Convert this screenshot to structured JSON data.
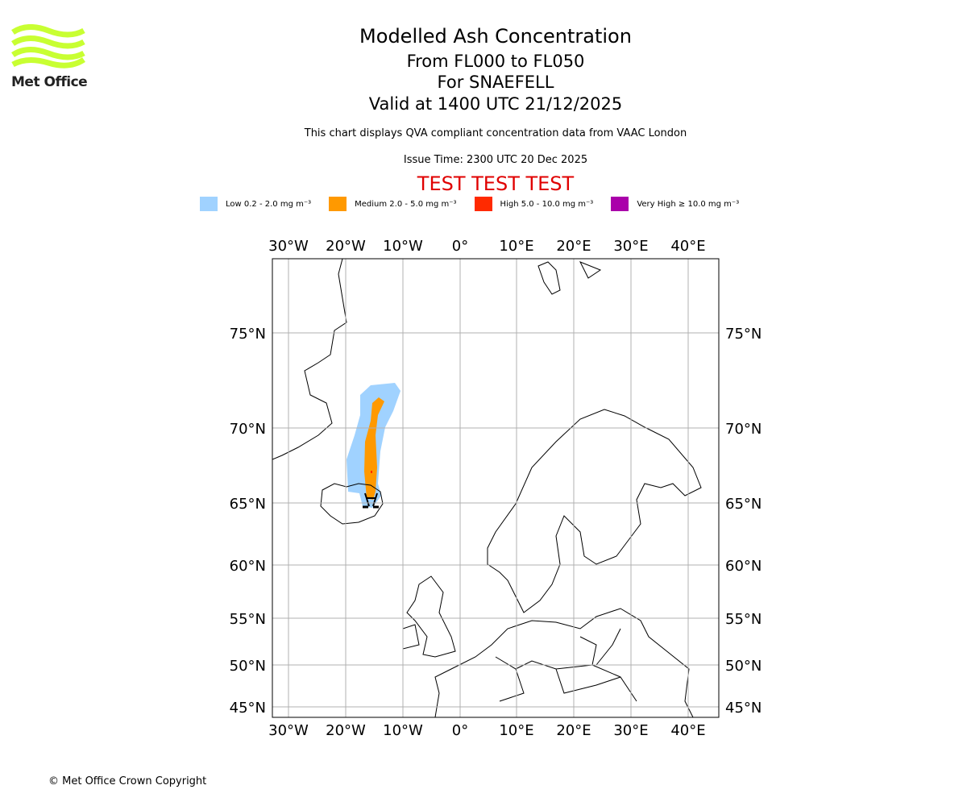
{
  "logo": {
    "text": "Met Office"
  },
  "header": {
    "title": "Modelled Ash Concentration",
    "flight_levels": "From FL000 to FL050",
    "volcano": "For SNAEFELL",
    "valid": "Valid at 1400 UTC 21/12/2025",
    "description": "This chart displays QVA compliant concentration data from VAAC London",
    "issue_time": "Issue Time: 2300 UTC 20 Dec 2025",
    "test_banner": "TEST TEST TEST"
  },
  "legend": [
    {
      "label": "Low 0.2 - 2.0 mg m⁻³",
      "color": "#a0d2ff"
    },
    {
      "label": "Medium 2.0 - 5.0 mg m⁻³",
      "color": "#ff9900"
    },
    {
      "label": "High 5.0 - 10.0 mg m⁻³",
      "color": "#ff2a00"
    },
    {
      "label": "Very High ≥ 10.0 mg m⁻³",
      "color": "#aa00aa"
    }
  ],
  "map": {
    "lon_labels": [
      "30°W",
      "20°W",
      "10°W",
      "0°",
      "10°E",
      "20°E",
      "30°E",
      "40°E"
    ],
    "lat_labels": [
      "75°N",
      "70°N",
      "65°N",
      "60°N",
      "55°N",
      "50°N",
      "45°N"
    ]
  },
  "footer": {
    "copyright": "© Met Office Crown Copyright"
  }
}
